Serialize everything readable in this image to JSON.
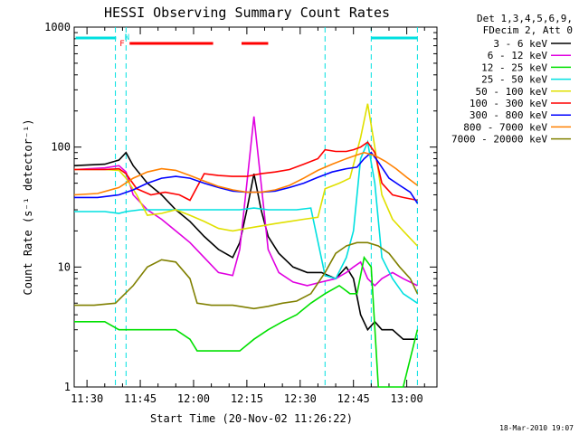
{
  "chart_data": {
    "type": "line",
    "title": "HESSI Observing Summary Count Rates",
    "xlabel": "Start Time (20-Nov-02 11:26:22)",
    "ylabel": "Count Rate (s⁻¹ detector⁻¹)",
    "ylog": true,
    "ylim": [
      1,
      1000
    ],
    "xlim_minutes": [
      686.4,
      788.5
    ],
    "x_ticks": [
      {
        "label": "11:30",
        "minute": 690
      },
      {
        "label": "11:45",
        "minute": 705
      },
      {
        "label": "12:00",
        "minute": 720
      },
      {
        "label": "12:15",
        "minute": 735
      },
      {
        "label": "12:30",
        "minute": 750
      },
      {
        "label": "12:45",
        "minute": 765
      },
      {
        "label": "13:00",
        "minute": 780
      }
    ],
    "y_ticks": [
      "1",
      "10",
      "100",
      "1000"
    ],
    "legend_header": [
      "Det 1,3,4,5,6,9,",
      "FDecim 2, Att 0"
    ],
    "legend_position": "right",
    "flag_labels": {
      "flare": "F",
      "night": "N"
    },
    "attenuator_lines_minutes": [
      698,
      701,
      757,
      770,
      783
    ],
    "series": [
      {
        "name": "3 - 6 keV",
        "color": "#000000",
        "points": [
          [
            686.4,
            70
          ],
          [
            695,
            72
          ],
          [
            699,
            78
          ],
          [
            701,
            90
          ],
          [
            703,
            70
          ],
          [
            707,
            50
          ],
          [
            711,
            40
          ],
          [
            715,
            30
          ],
          [
            719,
            24
          ],
          [
            723,
            18
          ],
          [
            727,
            14
          ],
          [
            731,
            12
          ],
          [
            733,
            16
          ],
          [
            735,
            30
          ],
          [
            737,
            60
          ],
          [
            739,
            30
          ],
          [
            741,
            18
          ],
          [
            744,
            13
          ],
          [
            748,
            10
          ],
          [
            752,
            9
          ],
          [
            756,
            9
          ],
          [
            760,
            8
          ],
          [
            763,
            10
          ],
          [
            765,
            8
          ],
          [
            767,
            4
          ],
          [
            769,
            3
          ],
          [
            771,
            3.5
          ],
          [
            773,
            3
          ],
          [
            776,
            3
          ],
          [
            779,
            2.5
          ],
          [
            783,
            2.5
          ]
        ]
      },
      {
        "name": "6 - 12 keV",
        "color": "#e000e0",
        "points": [
          [
            686.4,
            65
          ],
          [
            695,
            67
          ],
          [
            699,
            70
          ],
          [
            701,
            62
          ],
          [
            703,
            40
          ],
          [
            707,
            30
          ],
          [
            711,
            25
          ],
          [
            715,
            20
          ],
          [
            719,
            16
          ],
          [
            723,
            12
          ],
          [
            727,
            9
          ],
          [
            731,
            8.5
          ],
          [
            733,
            14
          ],
          [
            735,
            50
          ],
          [
            737,
            180
          ],
          [
            739,
            50
          ],
          [
            741,
            14
          ],
          [
            744,
            9
          ],
          [
            748,
            7.5
          ],
          [
            752,
            7
          ],
          [
            756,
            7.5
          ],
          [
            760,
            8
          ],
          [
            763,
            9
          ],
          [
            765,
            10
          ],
          [
            767,
            11
          ],
          [
            769,
            8
          ],
          [
            771,
            7
          ],
          [
            773,
            8
          ],
          [
            776,
            9
          ],
          [
            779,
            8
          ],
          [
            783,
            7
          ]
        ]
      },
      {
        "name": "12 - 25 keV",
        "color": "#00e000",
        "points": [
          [
            686.4,
            3.5
          ],
          [
            695,
            3.5
          ],
          [
            699,
            3
          ],
          [
            701,
            3
          ],
          [
            705,
            3
          ],
          [
            710,
            3
          ],
          [
            715,
            3
          ],
          [
            719,
            2.5
          ],
          [
            721,
            2
          ],
          [
            725,
            2
          ],
          [
            729,
            2
          ],
          [
            733,
            2
          ],
          [
            737,
            2.5
          ],
          [
            741,
            3
          ],
          [
            745,
            3.5
          ],
          [
            749,
            4
          ],
          [
            753,
            5
          ],
          [
            757,
            6
          ],
          [
            761,
            7
          ],
          [
            764,
            6
          ],
          [
            766,
            6
          ],
          [
            768,
            12
          ],
          [
            770,
            10
          ],
          [
            772,
            1
          ],
          [
            776,
            1
          ],
          [
            779,
            1
          ],
          [
            783,
            3
          ]
        ]
      },
      {
        "name": "25 - 50 keV",
        "color": "#00e0e0",
        "points": [
          [
            686.4,
            29
          ],
          [
            695,
            29
          ],
          [
            699,
            28
          ],
          [
            701,
            29
          ],
          [
            705,
            30
          ],
          [
            711,
            30
          ],
          [
            717,
            30
          ],
          [
            723,
            30
          ],
          [
            729,
            30
          ],
          [
            733,
            30
          ],
          [
            737,
            31
          ],
          [
            741,
            30
          ],
          [
            745,
            30
          ],
          [
            749,
            30
          ],
          [
            753,
            31
          ],
          [
            757,
            8.5
          ],
          [
            760,
            8
          ],
          [
            763,
            12
          ],
          [
            765,
            20
          ],
          [
            767,
            80
          ],
          [
            769,
            110
          ],
          [
            771,
            50
          ],
          [
            773,
            12
          ],
          [
            776,
            8
          ],
          [
            779,
            6
          ],
          [
            783,
            5
          ]
        ]
      },
      {
        "name": "50 - 100 keV",
        "color": "#e0e000",
        "points": [
          [
            686.4,
            65
          ],
          [
            695,
            65
          ],
          [
            699,
            64
          ],
          [
            701,
            55
          ],
          [
            704,
            40
          ],
          [
            707,
            27
          ],
          [
            711,
            28
          ],
          [
            715,
            30
          ],
          [
            719,
            27
          ],
          [
            723,
            24
          ],
          [
            727,
            21
          ],
          [
            731,
            20
          ],
          [
            735,
            21
          ],
          [
            739,
            22
          ],
          [
            743,
            23
          ],
          [
            747,
            24
          ],
          [
            751,
            25
          ],
          [
            755,
            26
          ],
          [
            757,
            45
          ],
          [
            761,
            50
          ],
          [
            764,
            55
          ],
          [
            767,
            120
          ],
          [
            769,
            230
          ],
          [
            771,
            100
          ],
          [
            773,
            40
          ],
          [
            776,
            25
          ],
          [
            779,
            20
          ],
          [
            783,
            15
          ]
        ]
      },
      {
        "name": "100 - 300 keV",
        "color": "#ff0000",
        "points": [
          [
            686.4,
            65
          ],
          [
            695,
            65
          ],
          [
            699,
            66
          ],
          [
            701,
            60
          ],
          [
            704,
            45
          ],
          [
            708,
            40
          ],
          [
            712,
            42
          ],
          [
            716,
            40
          ],
          [
            719,
            36
          ],
          [
            723,
            60
          ],
          [
            727,
            58
          ],
          [
            731,
            57
          ],
          [
            735,
            57
          ],
          [
            739,
            60
          ],
          [
            743,
            62
          ],
          [
            747,
            65
          ],
          [
            751,
            72
          ],
          [
            755,
            80
          ],
          [
            757,
            95
          ],
          [
            760,
            92
          ],
          [
            763,
            92
          ],
          [
            765,
            95
          ],
          [
            767,
            100
          ],
          [
            769,
            110
          ],
          [
            771,
            90
          ],
          [
            773,
            50
          ],
          [
            776,
            40
          ],
          [
            779,
            38
          ],
          [
            783,
            36
          ]
        ]
      },
      {
        "name": "300 - 800 keV",
        "color": "#0000ff",
        "points": [
          [
            686.4,
            38
          ],
          [
            693,
            38
          ],
          [
            699,
            40
          ],
          [
            703,
            44
          ],
          [
            707,
            50
          ],
          [
            711,
            55
          ],
          [
            715,
            57
          ],
          [
            719,
            55
          ],
          [
            723,
            50
          ],
          [
            727,
            46
          ],
          [
            731,
            43
          ],
          [
            735,
            42
          ],
          [
            739,
            42
          ],
          [
            743,
            43
          ],
          [
            747,
            46
          ],
          [
            751,
            50
          ],
          [
            755,
            56
          ],
          [
            759,
            62
          ],
          [
            763,
            66
          ],
          [
            766,
            68
          ],
          [
            768,
            80
          ],
          [
            770,
            90
          ],
          [
            772,
            75
          ],
          [
            775,
            55
          ],
          [
            778,
            48
          ],
          [
            781,
            42
          ],
          [
            783,
            34
          ]
        ]
      },
      {
        "name": "800 - 7000 keV",
        "color": "#ff8000",
        "points": [
          [
            686.4,
            40
          ],
          [
            693,
            41
          ],
          [
            699,
            46
          ],
          [
            703,
            55
          ],
          [
            707,
            62
          ],
          [
            711,
            66
          ],
          [
            715,
            64
          ],
          [
            719,
            58
          ],
          [
            723,
            52
          ],
          [
            727,
            47
          ],
          [
            731,
            44
          ],
          [
            735,
            42
          ],
          [
            739,
            42
          ],
          [
            743,
            44
          ],
          [
            747,
            48
          ],
          [
            751,
            55
          ],
          [
            755,
            64
          ],
          [
            759,
            72
          ],
          [
            763,
            80
          ],
          [
            766,
            86
          ],
          [
            768,
            90
          ],
          [
            771,
            85
          ],
          [
            774,
            76
          ],
          [
            777,
            66
          ],
          [
            780,
            56
          ],
          [
            783,
            48
          ]
        ]
      },
      {
        "name": "7000 - 20000 keV",
        "color": "#808000",
        "points": [
          [
            686.4,
            4.8
          ],
          [
            692,
            4.8
          ],
          [
            698,
            5
          ],
          [
            703,
            7
          ],
          [
            707,
            10
          ],
          [
            711,
            11.5
          ],
          [
            715,
            11
          ],
          [
            719,
            8
          ],
          [
            721,
            5
          ],
          [
            725,
            4.8
          ],
          [
            731,
            4.8
          ],
          [
            737,
            4.5
          ],
          [
            741,
            4.7
          ],
          [
            745,
            5
          ],
          [
            749,
            5.2
          ],
          [
            753,
            6
          ],
          [
            757,
            9
          ],
          [
            760,
            13
          ],
          [
            763,
            15
          ],
          [
            766,
            16
          ],
          [
            769,
            16
          ],
          [
            772,
            15
          ],
          [
            775,
            13
          ],
          [
            778,
            10
          ],
          [
            781,
            8
          ],
          [
            783,
            6
          ]
        ]
      }
    ]
  },
  "footer": {
    "date_stamp": "18-Mar-2010 19:07"
  }
}
